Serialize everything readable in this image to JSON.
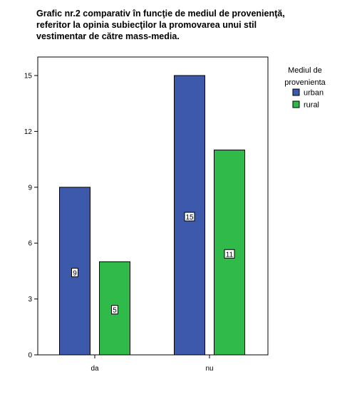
{
  "title_lines": [
    "Grafic nr.2 comparativ în funcţie de mediul de provenienţă,",
    "referitor la opinia subiecţilor la promovarea unui stil",
    "vestimentar de către mass-media."
  ],
  "legend": {
    "title_lines": [
      "Mediul de",
      "provenienta"
    ],
    "placement": "right"
  },
  "chart_data": {
    "type": "bar",
    "categories": [
      "da",
      "nu"
    ],
    "series": [
      {
        "name": "urban",
        "values": [
          9,
          15
        ],
        "color": "#3d59ab"
      },
      {
        "name": "rural",
        "values": [
          5,
          11
        ],
        "color": "#2fba4a"
      }
    ],
    "ylim": [
      0,
      16
    ],
    "yticks": [
      0,
      3,
      6,
      9,
      12,
      15
    ],
    "xlabel": "",
    "ylabel": "",
    "grid": false,
    "data_labels": true
  }
}
